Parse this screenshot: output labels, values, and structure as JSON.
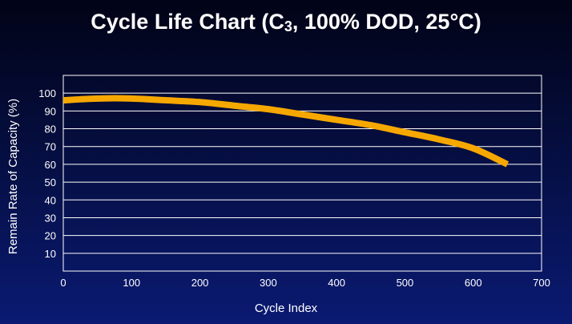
{
  "chart_data": {
    "type": "line",
    "title_main": "Cycle Life Chart (C",
    "title_sub": "3",
    "title_rest": ", 100% DOD, 25°C)",
    "xlabel": "Cycle Index",
    "ylabel": "Remain Rate of Capacity (%)",
    "xlim": [
      0,
      700
    ],
    "ylim": [
      0,
      110
    ],
    "xticks": [
      "0",
      "100",
      "200",
      "300",
      "400",
      "500",
      "600",
      "700"
    ],
    "yticks": [
      "10",
      "20",
      "30",
      "40",
      "50",
      "60",
      "70",
      "80",
      "90",
      "100"
    ],
    "grid": true,
    "series": [
      {
        "color": "#f6a800",
        "x": [
          0,
          50,
          100,
          150,
          200,
          250,
          300,
          350,
          400,
          450,
          500,
          550,
          600,
          650
        ],
        "y": [
          96,
          97,
          97,
          96,
          95,
          93,
          91,
          88,
          85,
          82,
          78,
          74,
          69,
          60
        ]
      }
    ]
  },
  "colors": {
    "plot_border": "#ffffff",
    "grid": "#ffffff",
    "text": "#ffffff"
  }
}
